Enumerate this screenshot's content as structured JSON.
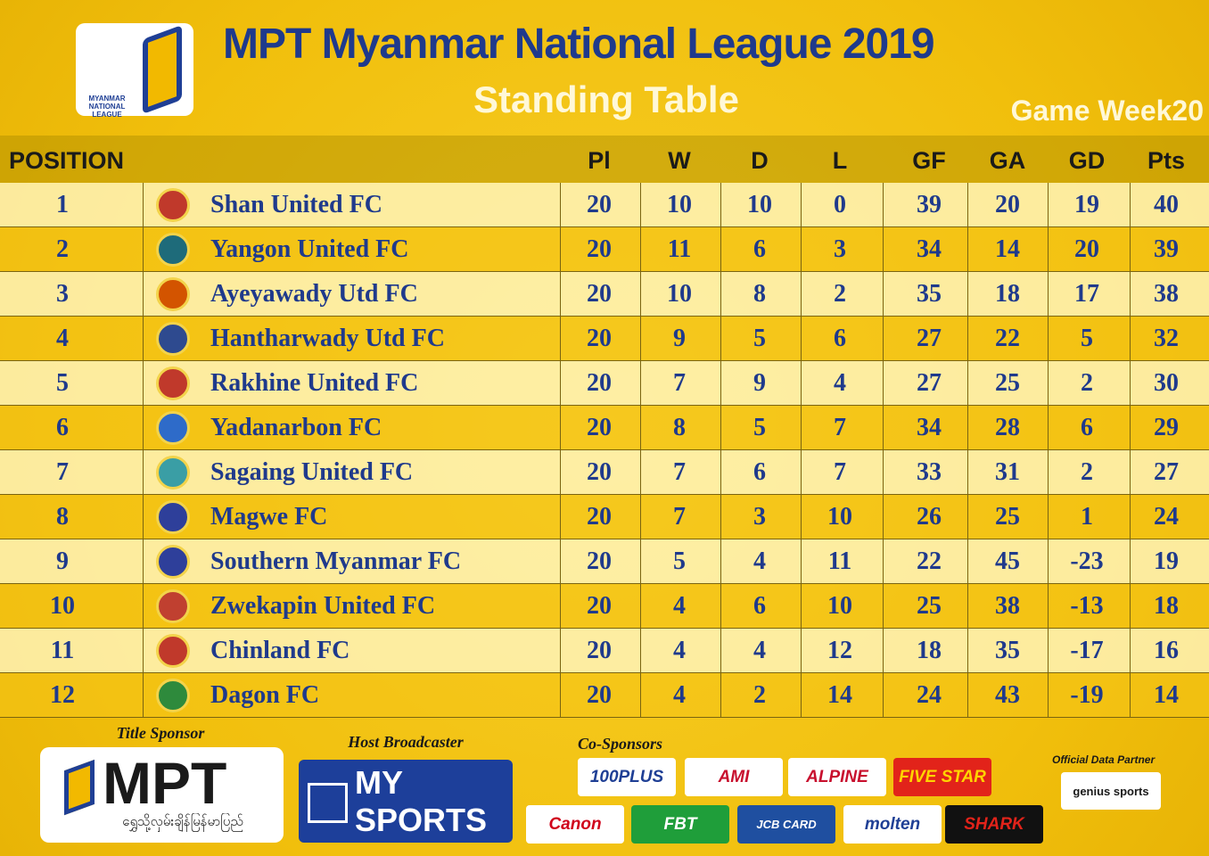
{
  "header": {
    "logo_text": "MYANMAR NATIONAL LEAGUE",
    "title": "MPT Myanmar National League 2019",
    "subtitle": "Standing Table",
    "game_week": "Game Week20"
  },
  "table": {
    "columns": [
      "POSITION",
      "Pl",
      "W",
      "D",
      "L",
      "GF",
      "GA",
      "GD",
      "Pts"
    ],
    "rows": [
      [
        1,
        "Shan United FC",
        20,
        10,
        10,
        0,
        39,
        20,
        19,
        40
      ],
      [
        2,
        "Yangon United FC",
        20,
        11,
        6,
        3,
        34,
        14,
        20,
        39
      ],
      [
        3,
        "Ayeyawady Utd FC",
        20,
        10,
        8,
        2,
        35,
        18,
        17,
        38
      ],
      [
        4,
        "Hantharwady Utd FC",
        20,
        9,
        5,
        6,
        27,
        22,
        5,
        32
      ],
      [
        5,
        "Rakhine United FC",
        20,
        7,
        9,
        4,
        27,
        25,
        2,
        30
      ],
      [
        6,
        "Yadanarbon FC",
        20,
        8,
        5,
        7,
        34,
        28,
        6,
        29
      ],
      [
        7,
        "Sagaing United FC",
        20,
        7,
        6,
        7,
        33,
        31,
        2,
        27
      ],
      [
        8,
        "Magwe FC",
        20,
        7,
        3,
        10,
        26,
        25,
        1,
        24
      ],
      [
        9,
        "Southern Myanmar FC",
        20,
        5,
        4,
        11,
        22,
        45,
        -23,
        19
      ],
      [
        10,
        "Zwekapin United FC",
        20,
        4,
        6,
        10,
        25,
        38,
        -13,
        18
      ],
      [
        11,
        "Chinland FC",
        20,
        4,
        4,
        12,
        18,
        35,
        -17,
        16
      ],
      [
        12,
        "Dagon FC",
        20,
        4,
        2,
        14,
        24,
        43,
        -19,
        14
      ]
    ]
  },
  "sponsors": {
    "title_sponsor": {
      "label": "Title Sponsor",
      "name": "MPT",
      "tagline": "ရွှေသို့လှမ်းချိန်မြန်မာပြည်"
    },
    "host_broadcaster": {
      "label": "Host Broadcaster",
      "name": "MY SPORTS"
    },
    "co_sponsors": {
      "label": "Co-Sponsors",
      "names": [
        "100PLUS",
        "AMI",
        "ALPINE",
        "FIVE STAR",
        "Canon",
        "FBT",
        "JCB CARD",
        "molten",
        "SHARK"
      ]
    },
    "data_partner": {
      "label": "Official Data Partner",
      "name": "genius sports"
    }
  }
}
